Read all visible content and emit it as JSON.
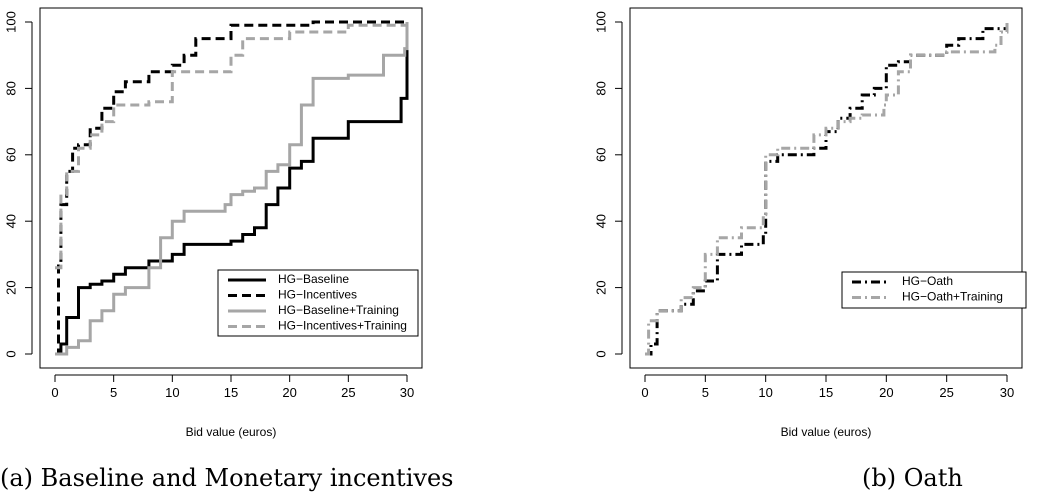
{
  "chart_data": [
    {
      "type": "line",
      "caption": "(a) Baseline and Monetary incentives",
      "xlabel": "Bid value (euros)",
      "ylabel": "",
      "xlim": [
        0,
        30
      ],
      "ylim": [
        0,
        100
      ],
      "x_ticks": [
        0,
        5,
        10,
        15,
        20,
        25,
        30
      ],
      "y_ticks": [
        0,
        20,
        40,
        60,
        80,
        100
      ],
      "step": true,
      "grid": false,
      "legend_position": "bottom-right",
      "series": [
        {
          "name": "HG−Baseline",
          "color": "#000000",
          "style": "solid",
          "x": [
            0,
            0.5,
            1,
            2,
            3,
            4,
            5,
            6,
            8,
            10,
            11,
            15,
            16,
            17,
            18,
            19,
            20,
            21,
            22,
            25,
            29.5,
            30
          ],
          "y": [
            0,
            3,
            11,
            20,
            21,
            22,
            24,
            26,
            28,
            30,
            33,
            34,
            36,
            38,
            45,
            50,
            56,
            58,
            65,
            70,
            77,
            100
          ]
        },
        {
          "name": "HG−Incentives",
          "color": "#000000",
          "style": "dashed",
          "x": [
            0,
            0.3,
            0.5,
            1,
            1.5,
            2,
            3,
            4,
            5,
            6,
            8,
            10,
            11,
            12,
            15,
            20,
            22,
            30
          ],
          "y": [
            0,
            27,
            45,
            55,
            62,
            63,
            68,
            74,
            79,
            82,
            85,
            87,
            90,
            95,
            99,
            99,
            100,
            100
          ]
        },
        {
          "name": "HG−Baseline+Training",
          "color": "#a6a6a6",
          "style": "solid",
          "x": [
            0,
            1,
            2,
            3,
            4,
            5,
            6,
            8,
            9,
            10,
            11,
            14.5,
            15,
            16,
            17,
            18,
            19,
            20,
            21,
            22,
            25,
            28,
            29.8,
            30
          ],
          "y": [
            0,
            2,
            4,
            10,
            13,
            18,
            20,
            26,
            35,
            40,
            43,
            45,
            48,
            49,
            50,
            55,
            57,
            63,
            75,
            83,
            84,
            90,
            92,
            100
          ]
        },
        {
          "name": "HG−Incentives+Training",
          "color": "#a6a6a6",
          "style": "dashed",
          "x": [
            0,
            0.5,
            1,
            2,
            3,
            4,
            5,
            8,
            10,
            15,
            16,
            20,
            25,
            30
          ],
          "y": [
            26,
            48,
            55,
            62,
            66,
            70,
            75,
            76,
            85,
            90,
            95,
            97,
            99,
            100
          ]
        }
      ]
    },
    {
      "type": "line",
      "caption": "(b) Oath",
      "xlabel": "Bid value (euros)",
      "ylabel": "",
      "xlim": [
        0,
        30
      ],
      "ylim": [
        0,
        100
      ],
      "x_ticks": [
        0,
        5,
        10,
        15,
        20,
        25,
        30
      ],
      "y_ticks": [
        0,
        20,
        40,
        60,
        80,
        100
      ],
      "step": true,
      "grid": false,
      "legend_position": "bottom-right",
      "series": [
        {
          "name": "HG−Oath",
          "color": "#000000",
          "style": "dashdot",
          "x": [
            0,
            0.5,
            1,
            3,
            4,
            5,
            6,
            8,
            9.8,
            10,
            11,
            14,
            15,
            16,
            17,
            18,
            19,
            20,
            21,
            22,
            25,
            26,
            28,
            30
          ],
          "y": [
            0,
            3,
            13,
            15,
            19,
            22,
            30,
            33,
            36,
            58,
            60,
            62,
            67,
            71,
            74,
            78,
            80,
            87,
            88,
            90,
            93,
            95,
            98,
            100
          ]
        },
        {
          "name": "HG−Oath+Training",
          "color": "#a6a6a6",
          "style": "dashdot",
          "x": [
            0,
            0.3,
            1,
            3,
            4,
            5,
            6,
            8,
            9.8,
            10,
            11,
            14,
            15,
            16,
            17,
            18,
            19.8,
            20,
            21,
            22,
            25,
            29,
            29.5,
            30
          ],
          "y": [
            0,
            10,
            13,
            17,
            20,
            30,
            35,
            38,
            42,
            60,
            62,
            66,
            68,
            70,
            71,
            72,
            75,
            78,
            85,
            90,
            91,
            93,
            97,
            100
          ]
        }
      ]
    }
  ]
}
